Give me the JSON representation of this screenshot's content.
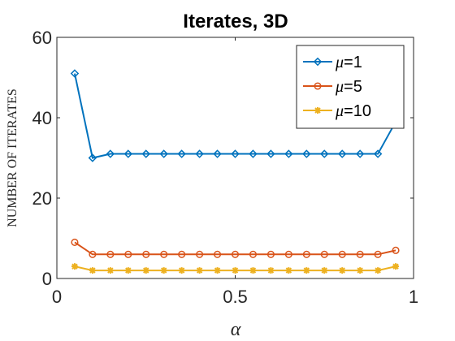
{
  "chart_data": {
    "type": "line",
    "title": "Iterates, 3D",
    "xlabel": "α",
    "ylabel": "NUMBER OF ITERATES",
    "xlim": [
      0,
      1
    ],
    "ylim": [
      0,
      60
    ],
    "xticks": [
      0,
      0.5,
      1
    ],
    "xtick_labels": [
      "0",
      "0.5",
      "1"
    ],
    "yticks": [
      0,
      20,
      40,
      60
    ],
    "ytick_labels": [
      "0",
      "20",
      "40",
      "60"
    ],
    "grid": false,
    "legend_position": "top-right",
    "x": [
      0.05,
      0.1,
      0.15,
      0.2,
      0.25,
      0.3,
      0.35,
      0.4,
      0.45,
      0.5,
      0.55,
      0.6,
      0.65,
      0.7,
      0.75,
      0.8,
      0.85,
      0.9,
      0.95
    ],
    "series": [
      {
        "name": "μ=1",
        "legend_symbol": "μ",
        "legend_suffix": "=1",
        "color": "#0072BD",
        "marker": "diamond",
        "values": [
          51,
          30,
          31,
          31,
          31,
          31,
          31,
          31,
          31,
          31,
          31,
          31,
          31,
          31,
          31,
          31,
          31,
          31,
          39
        ]
      },
      {
        "name": "μ=5",
        "legend_symbol": "μ",
        "legend_suffix": "=5",
        "color": "#D95319",
        "marker": "circle",
        "values": [
          9,
          6,
          6,
          6,
          6,
          6,
          6,
          6,
          6,
          6,
          6,
          6,
          6,
          6,
          6,
          6,
          6,
          6,
          7
        ]
      },
      {
        "name": "μ=10",
        "legend_symbol": "μ",
        "legend_suffix": "=10",
        "color": "#EDB120",
        "marker": "star",
        "values": [
          3,
          2,
          2,
          2,
          2,
          2,
          2,
          2,
          2,
          2,
          2,
          2,
          2,
          2,
          2,
          2,
          2,
          2,
          3
        ]
      }
    ]
  }
}
